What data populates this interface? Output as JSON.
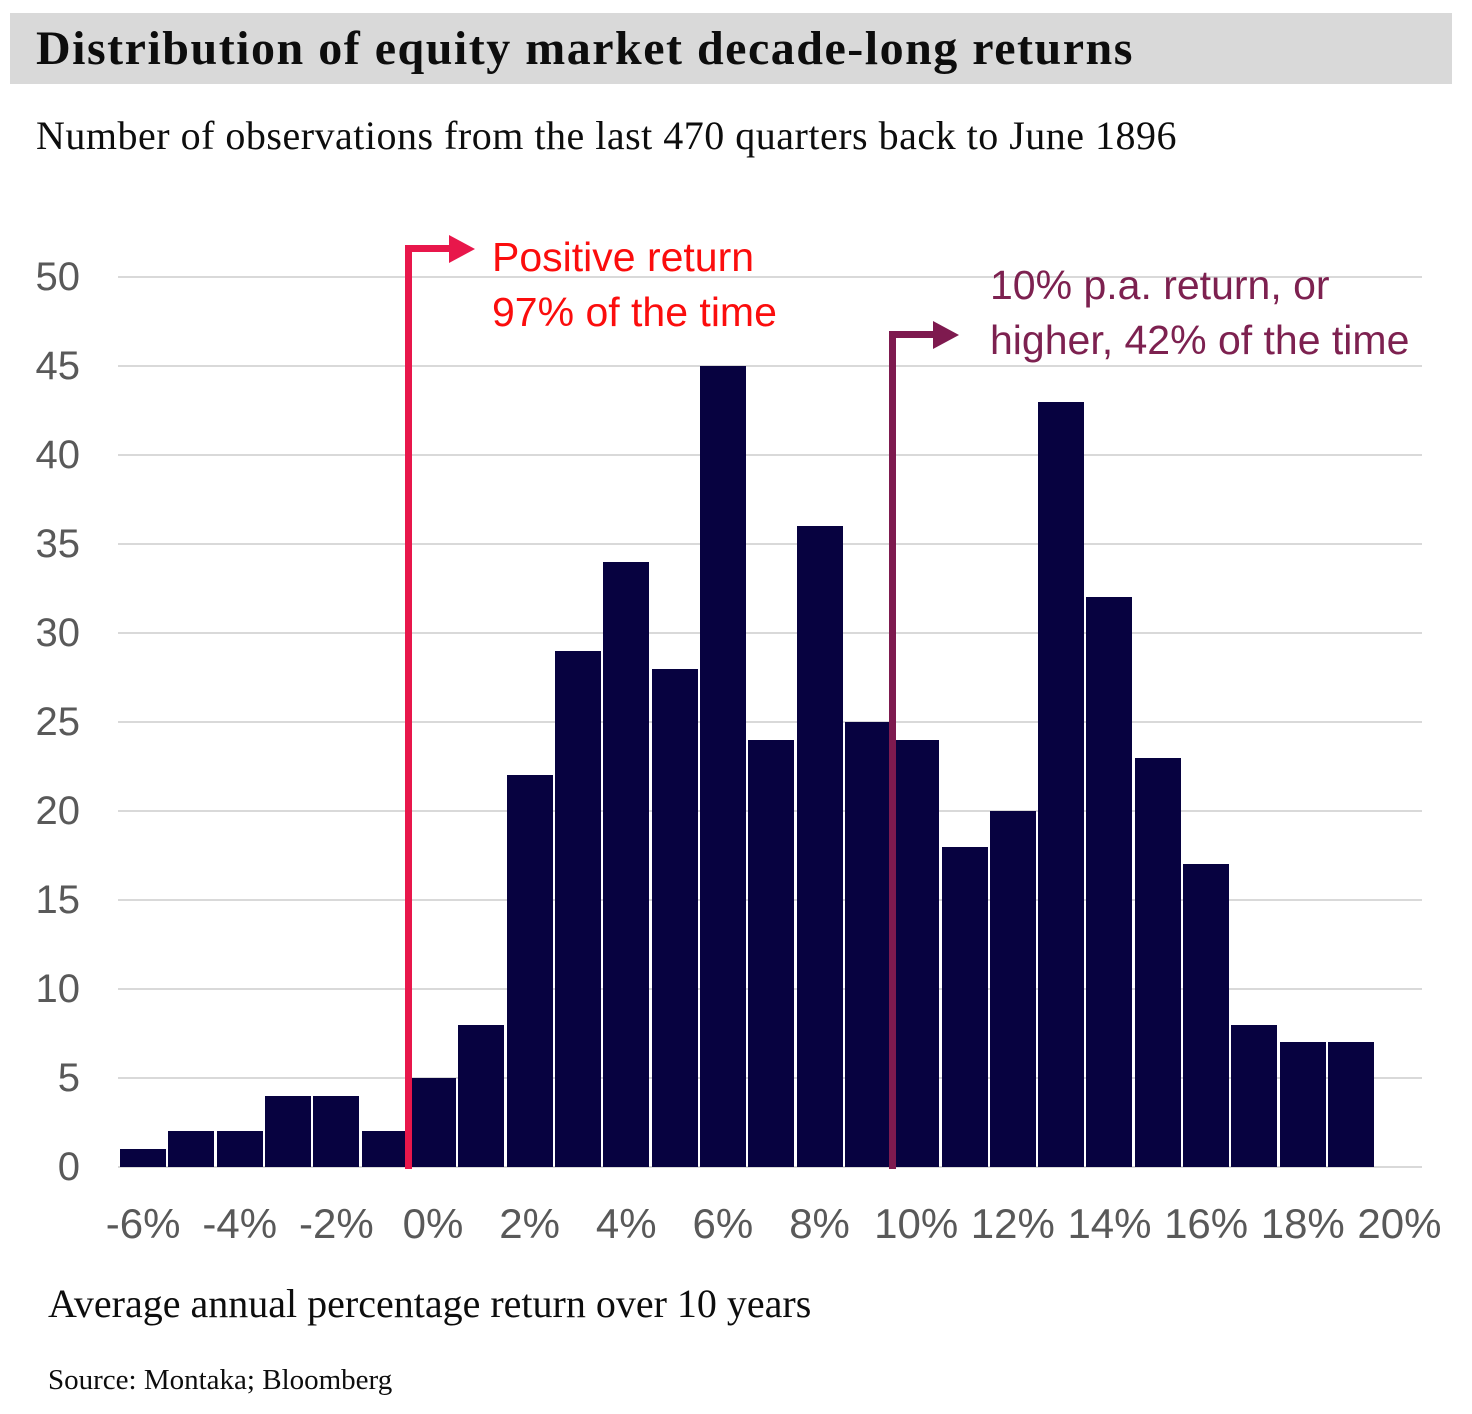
{
  "header": {
    "title": "Distribution of equity market decade-long returns",
    "subtitle": "Number of observations from the last 470 quarters back to June 1896"
  },
  "footer": {
    "xlabel": "Average annual percentage return over 10 years",
    "source": "Source: Montaka; Bloomberg"
  },
  "chart_data": {
    "type": "bar",
    "title": "Distribution of equity market decade-long returns",
    "subtitle": "Number of observations from the last 470 quarters back to June 1896",
    "xlabel": "Average annual percentage return over 10 years",
    "ylabel": "",
    "categories": [
      -6,
      -5,
      -4,
      -3,
      -2,
      -1,
      0,
      1,
      2,
      3,
      4,
      5,
      6,
      7,
      8,
      9,
      10,
      11,
      12,
      13,
      14,
      15,
      16,
      17,
      18,
      19
    ],
    "values": [
      1,
      2,
      2,
      4,
      4,
      2,
      5,
      8,
      22,
      29,
      34,
      28,
      45,
      24,
      36,
      25,
      24,
      18,
      20,
      43,
      32,
      23,
      17,
      8,
      7,
      7
    ],
    "total_observations": 470,
    "ylim": [
      0,
      50
    ],
    "ytick_step": 5,
    "yticks": [
      0,
      5,
      10,
      15,
      20,
      25,
      30,
      35,
      40,
      45,
      50
    ],
    "xtick_values": [
      -6,
      -4,
      -2,
      0,
      2,
      4,
      6,
      8,
      10,
      12,
      14,
      16,
      18,
      20
    ],
    "xtick_labels": [
      "-6%",
      "-4%",
      "-2%",
      "0%",
      "2%",
      "4%",
      "6%",
      "8%",
      "10%",
      "12%",
      "14%",
      "16%",
      "18%",
      "20%"
    ],
    "grid": true,
    "legend": "none",
    "bar_color": "#070240",
    "grid_color": "#d9d9d9",
    "tick_color": "#595959",
    "annotations": [
      {
        "name": "positive-return",
        "line1": "Positive return",
        "line2": "97% of the time",
        "x_value": -0.5,
        "line_color": "#e8174b",
        "text_color": "#fb0d0d"
      },
      {
        "name": "ten-percent-return",
        "line1": "10% p.a. return, or",
        "line2": "higher, 42% of the time",
        "x_value": 9.5,
        "line_color": "#7e1a4f",
        "text_color": "#7d2150"
      }
    ]
  }
}
